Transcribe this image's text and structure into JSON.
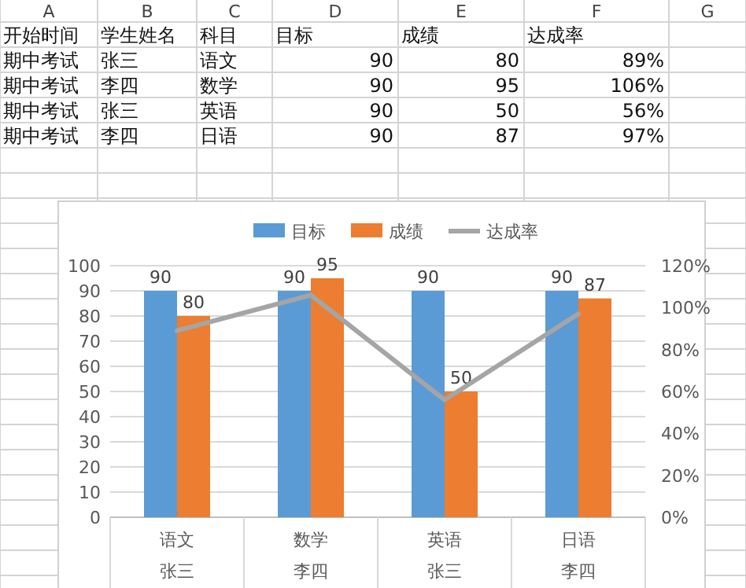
{
  "chart_data": {
    "type": "bar",
    "categories": [
      "语文",
      "数学",
      "英语",
      "日语"
    ],
    "series": [
      {
        "name": "目标",
        "color": "#5b9bd5",
        "values": [
          90,
          90,
          90,
          90
        ],
        "value_labels": [
          "90",
          "90",
          "90",
          "90"
        ]
      },
      {
        "name": "成绩",
        "color": "#ed7d31",
        "values": [
          80,
          95,
          50,
          87
        ],
        "value_labels": [
          "80",
          "95",
          "50",
          "87"
        ]
      },
      {
        "name": "达成率",
        "type": "line",
        "axis": "y2",
        "color": "#a5a5a5",
        "values": [
          89,
          106,
          56,
          97
        ]
      }
    ],
    "ylim": [
      0,
      100
    ],
    "yticks": [
      0,
      10,
      20,
      30,
      40,
      50,
      60,
      70,
      80,
      90,
      100
    ],
    "y2lim": [
      0,
      120
    ],
    "y2ticks": [
      {
        "value": 0,
        "label": "0%"
      },
      {
        "value": 20,
        "label": "20%"
      },
      {
        "value": 40,
        "label": "40%"
      },
      {
        "value": 60,
        "label": "60%"
      },
      {
        "value": 80,
        "label": "80%"
      },
      {
        "value": 100,
        "label": "100%"
      },
      {
        "value": 120,
        "label": "120%"
      }
    ],
    "grid": "y",
    "legend": "top",
    "marker": "none",
    "line_style": "solid",
    "annotations": [
      "张三",
      "李四",
      "张三",
      "李四",
      "A",
      "B",
      "C",
      "D",
      "E",
      "F",
      "G",
      "开始时间",
      "学生姓名",
      "科目",
      "目标",
      "成绩",
      "达成率",
      "期中考试",
      "张三",
      "语文",
      "90",
      "80",
      "89%",
      "期中考试",
      "李四",
      "数学",
      "90",
      "95",
      "106%",
      "期中考试",
      "张三",
      "英语",
      "90",
      "50",
      "56%",
      "期中考试",
      "李四",
      "日语",
      "90",
      "87",
      "97%"
    ]
  }
}
